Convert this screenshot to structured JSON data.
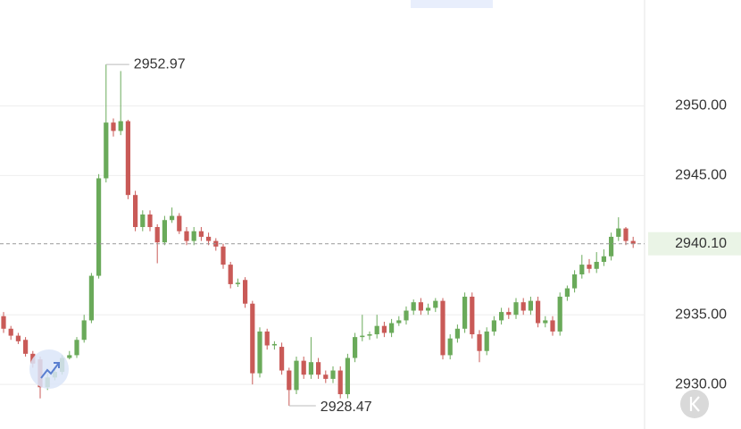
{
  "chart_data": {
    "type": "candlestick",
    "up_color": "#6aaa5a",
    "down_color": "#c95a57",
    "open": [
      2934.9,
      2934.0,
      2933.5,
      2933.2,
      2932.2,
      2931.8,
      2929.8,
      2930.5,
      2930.9,
      2931.9,
      2932.1,
      2933.2,
      2934.6,
      2937.8,
      2944.8,
      2948.8,
      2948.2,
      2948.9,
      2943.6,
      2941.3,
      2942.2,
      2941.3,
      2940.2,
      2941.8,
      2942.1,
      2941.0,
      2940.3,
      2941.0,
      2940.6,
      2940.3,
      2939.9,
      2938.6,
      2937.2,
      2937.5,
      2935.8,
      2930.8,
      2933.8,
      2932.8,
      2932.7,
      2931.0,
      2929.6,
      2931.7,
      2930.7,
      2931.6,
      2930.7,
      2930.4,
      2931.0,
      2929.3,
      2931.9,
      2933.4,
      2933.5,
      2933.6,
      2934.2,
      2933.7,
      2934.4,
      2934.6,
      2935.3,
      2935.9,
      2935.3,
      2935.5,
      2936.0,
      2932.1,
      2933.3,
      2934.0,
      2936.3,
      2933.6,
      2932.4,
      2933.8,
      2934.6,
      2935.2,
      2935.0,
      2935.9,
      2935.3,
      2936.0,
      2934.4,
      2934.6,
      2933.8,
      2936.3,
      2936.9,
      2937.9,
      2938.6,
      2938.3,
      2938.8,
      2939.2,
      2940.6,
      2941.2,
      2940.3
    ],
    "high": [
      2935.2,
      2934.2,
      2933.7,
      2933.4,
      2932.4,
      2932.0,
      2930.8,
      2931.2,
      2932.1,
      2932.4,
      2933.4,
      2935.0,
      2938.0,
      2945.1,
      2952.97,
      2949.1,
      2952.5,
      2949.0,
      2943.9,
      2942.5,
      2942.5,
      2941.5,
      2942.1,
      2942.7,
      2942.3,
      2941.3,
      2941.3,
      2941.3,
      2940.9,
      2940.5,
      2940.1,
      2938.8,
      2937.6,
      2937.7,
      2936.0,
      2934.1,
      2934.0,
      2933.1,
      2933.0,
      2931.2,
      2932.0,
      2932.0,
      2933.4,
      2931.9,
      2931.0,
      2931.3,
      2931.3,
      2932.2,
      2933.7,
      2935.0,
      2933.8,
      2935.0,
      2934.5,
      2934.7,
      2934.9,
      2935.6,
      2936.1,
      2936.2,
      2935.8,
      2936.2,
      2936.2,
      2933.6,
      2934.3,
      2936.6,
      2936.6,
      2933.9,
      2934.1,
      2934.9,
      2935.5,
      2935.5,
      2936.2,
      2936.2,
      2936.3,
      2936.3,
      2934.9,
      2934.9,
      2936.6,
      2937.1,
      2938.2,
      2939.3,
      2939.0,
      2939.5,
      2939.7,
      2940.9,
      2942.0,
      2941.3,
      2940.6
    ],
    "low": [
      2933.7,
      2933.2,
      2932.9,
      2932.0,
      2931.2,
      2929.0,
      2929.6,
      2930.3,
      2930.7,
      2931.8,
      2931.9,
      2933.0,
      2934.4,
      2937.6,
      2944.5,
      2947.8,
      2947.9,
      2943.3,
      2941.0,
      2941.0,
      2941.0,
      2938.7,
      2940.0,
      2941.6,
      2940.8,
      2940.0,
      2940.0,
      2940.3,
      2940.0,
      2939.6,
      2938.3,
      2936.9,
      2937.0,
      2935.5,
      2930.0,
      2930.5,
      2932.5,
      2932.5,
      2930.7,
      2928.47,
      2929.3,
      2930.4,
      2930.4,
      2930.4,
      2930.1,
      2930.1,
      2929.0,
      2929.0,
      2931.6,
      2933.1,
      2933.2,
      2933.3,
      2933.4,
      2933.4,
      2934.2,
      2934.3,
      2935.0,
      2935.0,
      2935.0,
      2935.2,
      2931.8,
      2931.8,
      2933.0,
      2933.7,
      2933.3,
      2931.6,
      2932.1,
      2933.5,
      2934.3,
      2934.7,
      2934.7,
      2935.0,
      2935.0,
      2934.1,
      2934.1,
      2933.5,
      2933.5,
      2936.0,
      2936.6,
      2937.6,
      2938.0,
      2938.0,
      2938.5,
      2938.9,
      2940.3,
      2940.0,
      2939.8
    ],
    "close": [
      2934.0,
      2933.5,
      2933.1,
      2932.2,
      2931.5,
      2929.8,
      2930.5,
      2930.9,
      2931.9,
      2932.1,
      2933.2,
      2934.6,
      2937.8,
      2944.8,
      2948.8,
      2948.2,
      2948.9,
      2943.6,
      2941.3,
      2942.2,
      2941.3,
      2940.2,
      2941.8,
      2942.1,
      2941.0,
      2940.3,
      2941.0,
      2940.6,
      2940.3,
      2939.9,
      2938.6,
      2937.2,
      2937.3,
      2935.8,
      2930.8,
      2933.8,
      2932.8,
      2932.9,
      2931.0,
      2929.6,
      2931.7,
      2930.7,
      2931.6,
      2930.7,
      2930.4,
      2931.0,
      2929.3,
      2931.9,
      2933.4,
      2933.5,
      2933.6,
      2934.2,
      2933.7,
      2934.4,
      2934.6,
      2935.3,
      2935.9,
      2935.3,
      2935.5,
      2936.0,
      2932.1,
      2933.3,
      2934.0,
      2936.3,
      2933.6,
      2932.4,
      2933.8,
      2934.6,
      2935.2,
      2935.0,
      2935.9,
      2935.3,
      2936.0,
      2934.4,
      2934.6,
      2933.8,
      2936.3,
      2936.9,
      2937.9,
      2938.6,
      2938.3,
      2938.8,
      2939.2,
      2940.6,
      2941.2,
      2940.3,
      2940.1
    ],
    "ylim": [
      2926.8,
      2957.6
    ],
    "yticks": [
      {
        "value": 2930,
        "label": "2930.00"
      },
      {
        "value": 2935,
        "label": "2935.00"
      },
      {
        "value": 2945,
        "label": "2945.00"
      },
      {
        "value": 2950,
        "label": "2950.00"
      }
    ],
    "grid": true,
    "last_price": {
      "value": 2940.1,
      "label": "2940.10"
    },
    "high_marker": 2952.97,
    "low_marker": 2928.47
  }
}
